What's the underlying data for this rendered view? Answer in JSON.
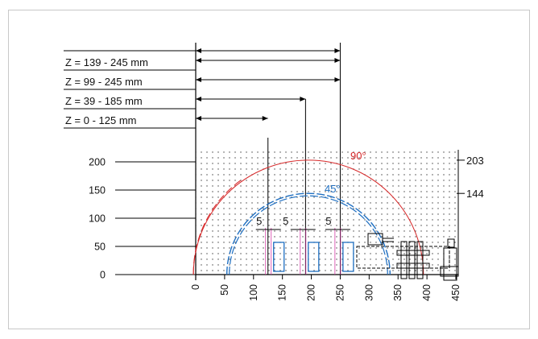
{
  "ranges": [
    {
      "label": "Z = 139 - 245 mm",
      "end": 250
    },
    {
      "label": "Z =  99 - 245 mm",
      "end": 250
    },
    {
      "label": "Z =  39 - 185 mm",
      "end": 190
    },
    {
      "label": "Z =    0 - 125 mm",
      "end": 125
    }
  ],
  "y_ticks": [
    "200",
    "150",
    "100",
    "50",
    "0"
  ],
  "y_tick_values": [
    200,
    150,
    100,
    50,
    0
  ],
  "x_ticks": [
    "0",
    "50",
    "100",
    "150",
    "200",
    "250",
    "300",
    "350",
    "400",
    "450"
  ],
  "x_tick_values": [
    0,
    50,
    100,
    150,
    200,
    250,
    300,
    350,
    400,
    450
  ],
  "right_labels": [
    {
      "text": "203",
      "value": 203
    },
    {
      "text": "144",
      "value": 144
    }
  ],
  "arcs": [
    {
      "label": "90°",
      "radius": 203,
      "color": "#d62728"
    },
    {
      "label": "45°",
      "radius": 144,
      "color": "#1f6fc1"
    }
  ],
  "gaps": [
    {
      "label": "5",
      "x": 125
    },
    {
      "label": "5",
      "x": 185
    },
    {
      "label": "5",
      "x": 245
    }
  ],
  "chart_data": {
    "type": "scatter",
    "x_ticks": [
      0,
      50,
      100,
      150,
      200,
      250,
      300,
      350,
      400,
      450
    ],
    "y_ticks": [
      0,
      50,
      100,
      150,
      200
    ],
    "annotations": [
      "203",
      "144",
      "90°",
      "45°",
      "5",
      "5",
      "5"
    ],
    "series": [
      {
        "name": "90°",
        "radius": 203
      },
      {
        "name": "45°",
        "radius": 144
      }
    ]
  }
}
